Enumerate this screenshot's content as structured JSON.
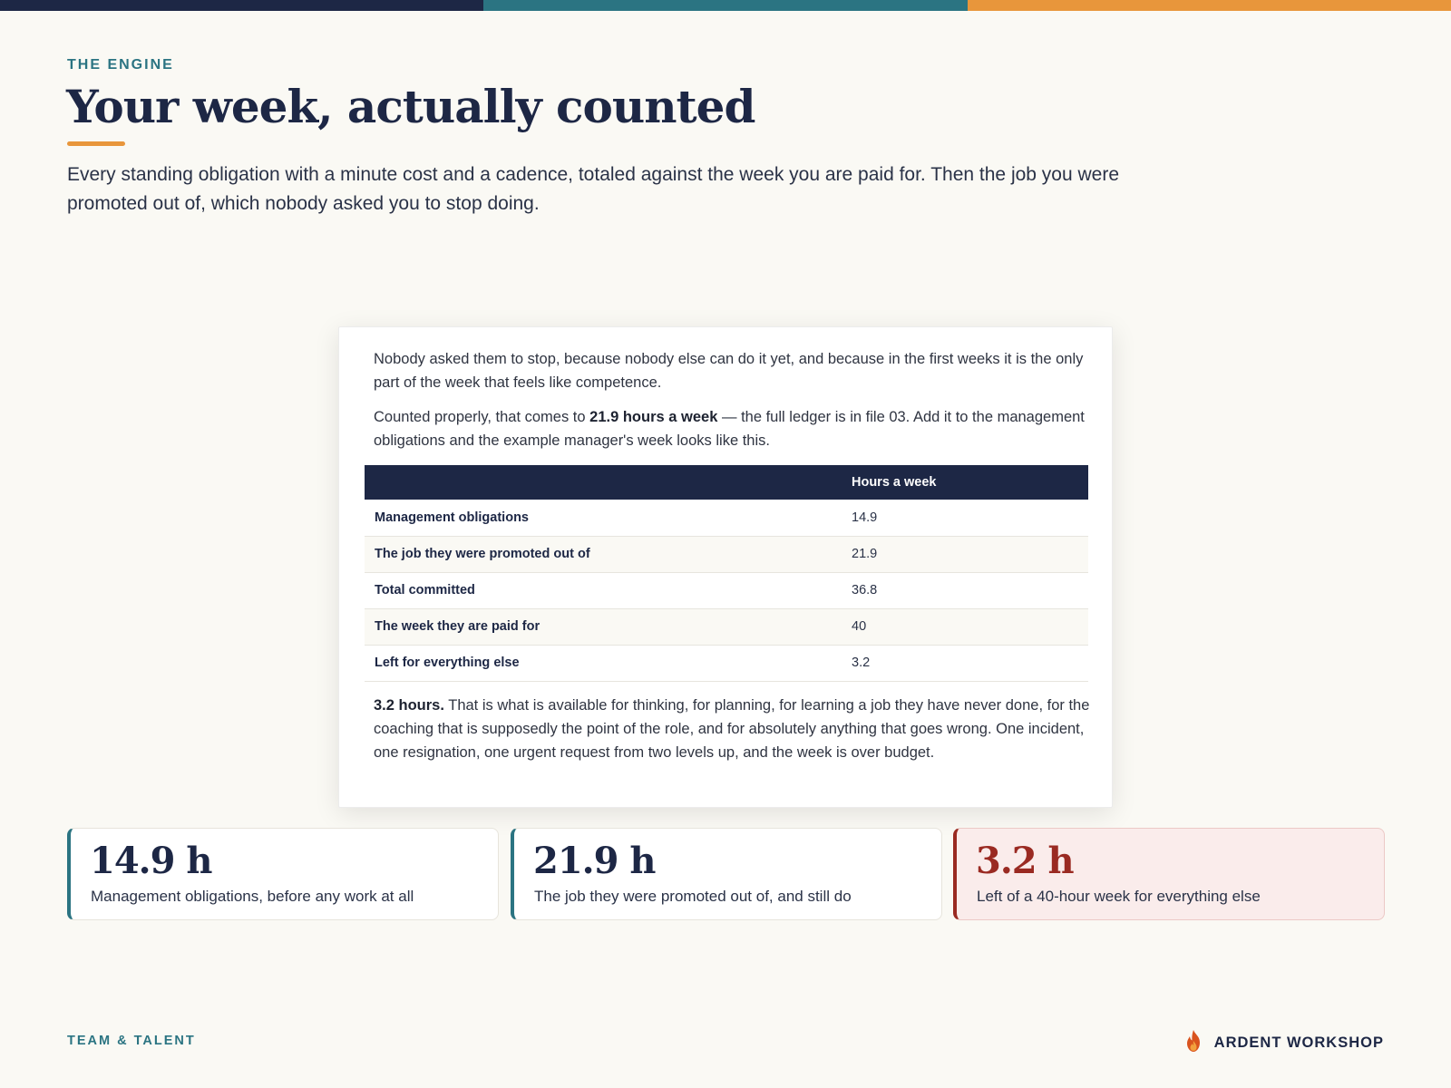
{
  "colors": {
    "navy": "#1d2745",
    "teal": "#2b7482",
    "orange": "#e8963b",
    "alert_red": "#9a2a22",
    "background": "#faf9f4"
  },
  "header": {
    "eyebrow": "THE ENGINE",
    "title": "Your week, actually counted",
    "lede": "Every standing obligation with a minute cost and a cadence, totaled against the week you are paid for. Then the job you were promoted out of, which nobody asked you to stop doing."
  },
  "card": {
    "para1": "Nobody asked them to stop, because nobody else can do it yet, and because in the first weeks it is the only part of the week that feels like competence.",
    "para2_pre": "Counted properly, that comes to ",
    "para2_bold": "21.9 hours a week",
    "para2_post": " — the full ledger is in file 03. Add it to the management obligations and the example manager's week looks like this.",
    "table": {
      "header_label": "",
      "header_value": "Hours a week",
      "rows": [
        {
          "label": "Management obligations",
          "value": "14.9"
        },
        {
          "label": "The job they were promoted out of",
          "value": "21.9"
        },
        {
          "label": "Total committed",
          "value": "36.8"
        },
        {
          "label": "The week they are paid for",
          "value": "40"
        },
        {
          "label": "Left for everything else",
          "value": "3.2"
        }
      ]
    },
    "para3_bold": "3.2 hours.",
    "para3_rest": " That is what is available for thinking, for planning, for learning a job they have never done, for the coaching that is supposedly the point of the role, and for absolutely anything that goes wrong. One incident, one resignation, one urgent request from two levels up, and the week is over budget."
  },
  "stats": [
    {
      "value": "14.9 h",
      "caption": "Management obligations, before any work at all"
    },
    {
      "value": "21.9 h",
      "caption": "The job they were promoted out of, and still do"
    },
    {
      "value": "3.2 h",
      "caption": "Left of a 40-hour week for everything else"
    }
  ],
  "footer": {
    "section": "TEAM & TALENT",
    "brand": "ARDENT WORKSHOP",
    "brand_icon": "flame-icon"
  }
}
